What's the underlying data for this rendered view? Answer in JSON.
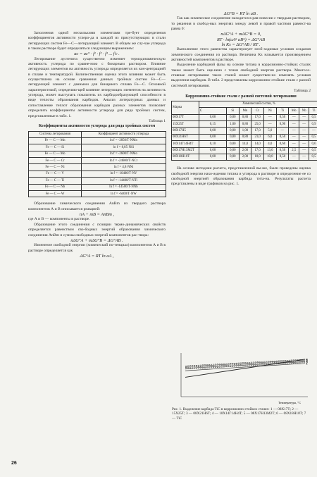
{
  "page_number": "26",
  "left_col": {
    "p1": "Заполнения одной несколькими элементами тре-бует определения коэффициентов активности углеро-да в каждой из присутствующих в стали легирующих систем Fe—С—легирующий элемент. В общем же слу-чае углерода в таком растворе будет определяться следующим выражением:",
    "f1": "aс = aс° · f¹ · f² · f³ ... fⁱс .",
    "p2": "Легирование аустенита существенно изменяет термодинамическую активность углерода по сравне-нию с бинарным раствором. Влияние легирующих элементов на активность углерода определяется их кон-центрацией в сплаве и температурой. Количественная оценка этого влияния может быть осуществлена на основе сравнения данных тройных систем Fe—С— легирующий элемент с данными для бинарного сплава Fe—C. Основной характеристикой, определяю-щей влияние легирующих элементов на активность углерода, может выступать показатель их карбидообразующей способности в виде теплоты образования карбидов. Анализ литературных данных и сопоставление теплот образования карбидов разных элементов позволяет определить коэффициенты активности углерода для ряда тройных систем, представленные в табл. 1.",
    "table1_no": "Таблица 1",
    "table1_title": "Коэффициенты активности углерода для ряда тройных систем",
    "table1_header": [
      "Система легирования",
      "Коэффициент активности углерода"
    ],
    "table1_rows": [
      [
        "Fe — С — Mn",
        "ln f = -2850/T·NMn"
      ],
      [
        "Fe — C — Si",
        "ln f = 8,85·NSi"
      ],
      [
        "Fe — C — Mo",
        "ln f = -2600/T·NMo"
      ],
      [
        "Fe — C — Cr",
        "ln f = -24600/T·NCr"
      ],
      [
        "Fe — C — Ni",
        "ln f = 4,8·NNi"
      ],
      [
        "Fe — C — V",
        "ln f = -10400/T·NV"
      ],
      [
        "Fe — C — Ti",
        "ln f = -14400/T·NTi"
      ],
      [
        "Fe — C — Nb",
        "ln f = -14500/T·NNb"
      ],
      [
        "Fe — C — W",
        "ln f = -6400/T·NW"
      ]
    ],
    "p3": "Образование химического соединения AnBm из твердого раствора компонентов А и В описывается реакцией:",
    "f2": "nA + mB = AnBm ,",
    "p4": "где А и В — компоненты в растворе.",
    "p5": "Образование этого соединения с позиции термо-динамических свойств определяется равенством сво-бодных энергий образования химического соединения AnBm и суммы свободных энергий компонентов рас-твора:",
    "f3": "nΔG°A + mΔG°B = ΔG°AB .",
    "p6": "Изменение свободной энергии (химический по-тенциал) компонентов А и В в растворе определяется как",
    "f4": "ΔG°A = RT ln aA ,"
  },
  "right_col": {
    "f5": "ΔG°B = RT ln aB .",
    "p1": "Так как химическое соединение находится в рав-новесии с твердым раствором, то решения в свобод-ных энергиях между левой и правой частями равенст-ва равна 0:",
    "f6": "nΔG°A + mΔG°B = 0,",
    "f7": "RT · ln(aAⁿ aBᵐ) = ΔG°AB",
    "f8": "ln Ks = ΔG°AB / RT .",
    "p2": "Выполнение этого равенства характеризует необ-ходимые условия создания химического соединения из раствора. Величина Ks называется произведением активностей компонентов в растворе.",
    "p3": "Выделение карбидной фазы на основе титана в коррозионно-стойких сталях также может быть оце-нено с точки свободной энергии раствора. Многосо-ставные легирования таких сталей может существен-но изменять условия выделения карбидов. В табл. 2 представлены коррозионно-стойкие стали с разной системой легирования.",
    "table2_no": "Таблица 2",
    "table2_title": "Коррозионно-стойкие стали с разной системой легирования",
    "table2_group": "Химический состав, %",
    "table2_header": [
      "Марка",
      "C",
      "Si",
      "Mn",
      "Cr",
      "Ni",
      "Ti",
      "Mo",
      "Nb",
      "Ti"
    ],
    "table2_rows": [
      [
        "08Х17Т",
        "0,08",
        "0,80",
        "0,80",
        "17,0",
        "—",
        "0,50",
        "—",
        "—",
        "0,5"
      ],
      [
        "15Х25Т",
        "0,15",
        "1,00",
        "0,80",
        "25,0",
        "—",
        "0,90",
        "—",
        "—",
        "0,9"
      ],
      [
        "08Х17Н5",
        "0,08",
        "0,80",
        "1,00",
        "17,0",
        "5,0",
        "—",
        "—",
        "—",
        "—"
      ],
      [
        "08Х21Н6Т",
        "0,08",
        "0,80",
        "0,80",
        "21,0",
        "6,0",
        "0,50",
        "—",
        "—",
        "0,5"
      ],
      [
        "10Х14Г14Н4Т",
        "0,10",
        "0,80",
        "14,0",
        "14,0",
        "4,0",
        "0,60",
        "—",
        "—",
        "0,6"
      ],
      [
        "08Х17Н13М2Т",
        "0,08",
        "0,80",
        "2,00",
        "17,0",
        "13,0",
        "0,50",
        "2,5",
        "—",
        "0,5"
      ],
      [
        "08Х18Н10Т",
        "0,08",
        "0,80",
        "2,00",
        "18,0",
        "10,0",
        "0,50",
        "—",
        "—",
        "0,5"
      ]
    ],
    "p4": "На основе методики расчета, представленной вы-ше, были проведены оценка свободной энергии нахо-ждения титана и углерода в растворе и определение ее со свободной энергией образования карбида тита-на. Результаты расчета представлены в виде графиков на рис. 1.",
    "fig_caption": "Рис. 1. Выделение карбида TiC в коррозионно-стойких сталях: 1 — 08Х17Т; 2 — 15Х25Т; 3 — 08Х21Н6Т; 4 — 10Х14Г14Н4Т; 5 — 08Х17Н13М2Т; 6 — 08Х18Н10Т; 7 — TiC"
  },
  "chart_data": {
    "type": "line",
    "xlabel": "Температура, °С",
    "ylabel": "",
    "series": [
      {
        "name": "1",
        "x": [
          0,
          1
        ],
        "values": [
          0.6,
          0.78
        ]
      },
      {
        "name": "2",
        "x": [
          0,
          1
        ],
        "values": [
          0.64,
          0.8
        ]
      },
      {
        "name": "3",
        "x": [
          0,
          1
        ],
        "values": [
          0.66,
          0.82
        ]
      },
      {
        "name": "4",
        "x": [
          0,
          1
        ],
        "values": [
          0.68,
          0.84
        ]
      },
      {
        "name": "5",
        "x": [
          0,
          1
        ],
        "values": [
          0.7,
          0.86
        ]
      },
      {
        "name": "6",
        "x": [
          0,
          1
        ],
        "values": [
          0.72,
          0.88
        ]
      },
      {
        "name": "7",
        "x": [
          0,
          1
        ],
        "values": [
          0.44,
          0.88
        ]
      }
    ],
    "grid": false
  }
}
